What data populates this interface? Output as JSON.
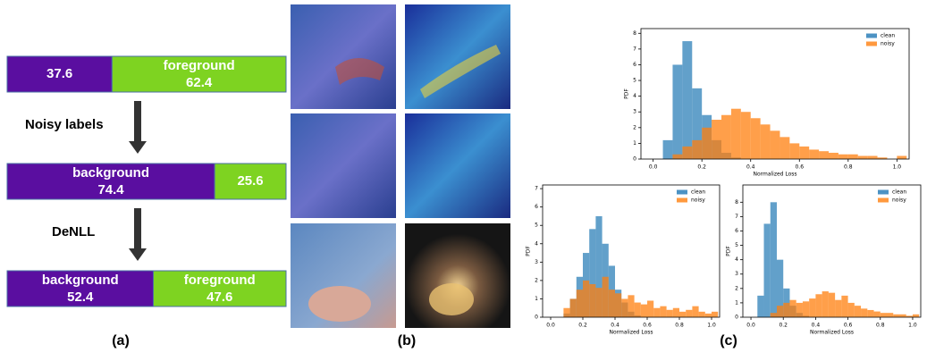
{
  "panel_a": {
    "caption": "(a)",
    "transitions": [
      "Noisy labels",
      "DeNLL"
    ],
    "bars": [
      {
        "segments": [
          {
            "value": 37.6,
            "color": "#5a0ea0"
          },
          {
            "name": "foreground",
            "value": 62.4,
            "color": "#7ed321"
          }
        ]
      },
      {
        "segments": [
          {
            "name": "background",
            "value": 74.4,
            "color": "#5a0ea0"
          },
          {
            "value": 25.6,
            "color": "#7ed321"
          }
        ]
      },
      {
        "segments": [
          {
            "name": "background",
            "value": 52.4,
            "color": "#5a0ea0"
          },
          {
            "name": "foreground",
            "value": 47.6,
            "color": "#7ed321"
          }
        ]
      }
    ]
  },
  "panel_b": {
    "caption": "(b)"
  },
  "panel_c": {
    "caption": "(c)"
  },
  "chart_data": [
    {
      "type": "histogram",
      "xlabel": "Normalized Loss",
      "ylabel": "PDF",
      "legend": "upper right",
      "bins": [
        0,
        0.04,
        0.08,
        0.12,
        0.16,
        0.2,
        0.24,
        0.28,
        0.32,
        0.36,
        0.4,
        0.44,
        0.48,
        0.52,
        0.56,
        0.6,
        0.64,
        0.68,
        0.72,
        0.76,
        0.8,
        0.84,
        0.88,
        0.92,
        0.96,
        1.0,
        1.04
      ],
      "series": [
        {
          "name": "clean",
          "color": "#1f77b4",
          "values": [
            0,
            1.2,
            6.0,
            7.5,
            4.5,
            2.8,
            1.2,
            0.4,
            0.1,
            0,
            0,
            0,
            0,
            0,
            0,
            0,
            0,
            0,
            0,
            0,
            0,
            0,
            0,
            0,
            0,
            0
          ]
        },
        {
          "name": "noisy",
          "color": "#ff7f0e",
          "values": [
            0,
            0,
            0.3,
            0.8,
            1.2,
            2.0,
            2.5,
            2.8,
            3.2,
            3.0,
            2.6,
            2.2,
            1.8,
            1.4,
            1.0,
            0.8,
            0.6,
            0.5,
            0.4,
            0.3,
            0.3,
            0.2,
            0.2,
            0.1,
            0,
            0.2
          ]
        }
      ],
      "xlim": [
        -0.05,
        1.05
      ],
      "xticks": [
        {
          "value": 0,
          "label": "0.0"
        },
        {
          "value": 0.2,
          "label": "0.2"
        },
        {
          "value": 0.4,
          "label": "0.4"
        },
        {
          "value": 0.6,
          "label": "0.6"
        },
        {
          "value": 0.8,
          "label": "0.8"
        },
        {
          "value": 1,
          "label": "1.0"
        }
      ],
      "ylim": [
        0,
        8.3
      ],
      "yticks": [
        0,
        1,
        2,
        3,
        4,
        5,
        6,
        7,
        8
      ]
    },
    {
      "type": "histogram",
      "xlabel": "Normalized Loss",
      "ylabel": "PDF",
      "legend": "upper right",
      "bins": [
        0,
        0.04,
        0.08,
        0.12,
        0.16,
        0.2,
        0.24,
        0.28,
        0.32,
        0.36,
        0.4,
        0.44,
        0.48,
        0.52,
        0.56,
        0.6,
        0.64,
        0.68,
        0.72,
        0.76,
        0.8,
        0.84,
        0.88,
        0.92,
        0.96,
        1.0,
        1.04
      ],
      "series": [
        {
          "name": "clean",
          "color": "#1f77b4",
          "values": [
            0,
            0,
            0.2,
            1.0,
            2.2,
            3.5,
            4.8,
            5.5,
            4.0,
            2.8,
            1.5,
            0.8,
            0.3,
            0.1,
            0,
            0,
            0,
            0,
            0,
            0,
            0,
            0,
            0,
            0,
            0,
            0
          ]
        },
        {
          "name": "noisy",
          "color": "#ff7f0e",
          "values": [
            0,
            0,
            0.5,
            1.0,
            1.5,
            2.0,
            1.8,
            1.6,
            2.2,
            1.5,
            1.3,
            1.0,
            1.2,
            0.8,
            0.7,
            0.9,
            0.5,
            0.6,
            0.4,
            0.5,
            0.3,
            0.4,
            0.6,
            0.3,
            0.2,
            0.3
          ]
        }
      ],
      "xlim": [
        -0.05,
        1.05
      ],
      "xticks": [
        {
          "value": 0,
          "label": "0.0"
        },
        {
          "value": 0.2,
          "label": "0.2"
        },
        {
          "value": 0.4,
          "label": "0.4"
        },
        {
          "value": 0.6,
          "label": "0.6"
        },
        {
          "value": 0.8,
          "label": "0.8"
        },
        {
          "value": 1,
          "label": "1.0"
        }
      ],
      "ylim": [
        0,
        7.2
      ],
      "yticks": [
        0,
        1,
        2,
        3,
        4,
        5,
        6,
        7
      ]
    },
    {
      "type": "histogram",
      "xlabel": "Normalized Loss",
      "ylabel": "PDF",
      "legend": "upper right",
      "bins": [
        0,
        0.04,
        0.08,
        0.12,
        0.16,
        0.2,
        0.24,
        0.28,
        0.32,
        0.36,
        0.4,
        0.44,
        0.48,
        0.52,
        0.56,
        0.6,
        0.64,
        0.68,
        0.72,
        0.76,
        0.8,
        0.84,
        0.88,
        0.92,
        0.96,
        1.0,
        1.04
      ],
      "series": [
        {
          "name": "clean",
          "color": "#1f77b4",
          "values": [
            0,
            1.5,
            6.5,
            8.0,
            4.0,
            2.0,
            0.8,
            0.3,
            0.1,
            0,
            0,
            0,
            0,
            0,
            0,
            0,
            0,
            0,
            0,
            0,
            0,
            0,
            0,
            0,
            0,
            0
          ]
        },
        {
          "name": "noisy",
          "color": "#ff7f0e",
          "values": [
            0,
            0,
            0,
            0.3,
            0.8,
            1.0,
            1.2,
            1.0,
            1.1,
            1.3,
            1.6,
            1.8,
            1.7,
            1.2,
            1.5,
            1.0,
            0.8,
            0.6,
            0.5,
            0.4,
            0.3,
            0.3,
            0.2,
            0.2,
            0.1,
            0.2
          ]
        }
      ],
      "xlim": [
        -0.05,
        1.05
      ],
      "xticks": [
        {
          "value": 0,
          "label": "0.0"
        },
        {
          "value": 0.2,
          "label": "0.2"
        },
        {
          "value": 0.4,
          "label": "0.4"
        },
        {
          "value": 0.6,
          "label": "0.6"
        },
        {
          "value": 0.8,
          "label": "0.8"
        },
        {
          "value": 1,
          "label": "1.0"
        }
      ],
      "ylim": [
        0,
        9.2
      ],
      "yticks": [
        0,
        1,
        2,
        3,
        4,
        5,
        6,
        7,
        8
      ]
    }
  ]
}
